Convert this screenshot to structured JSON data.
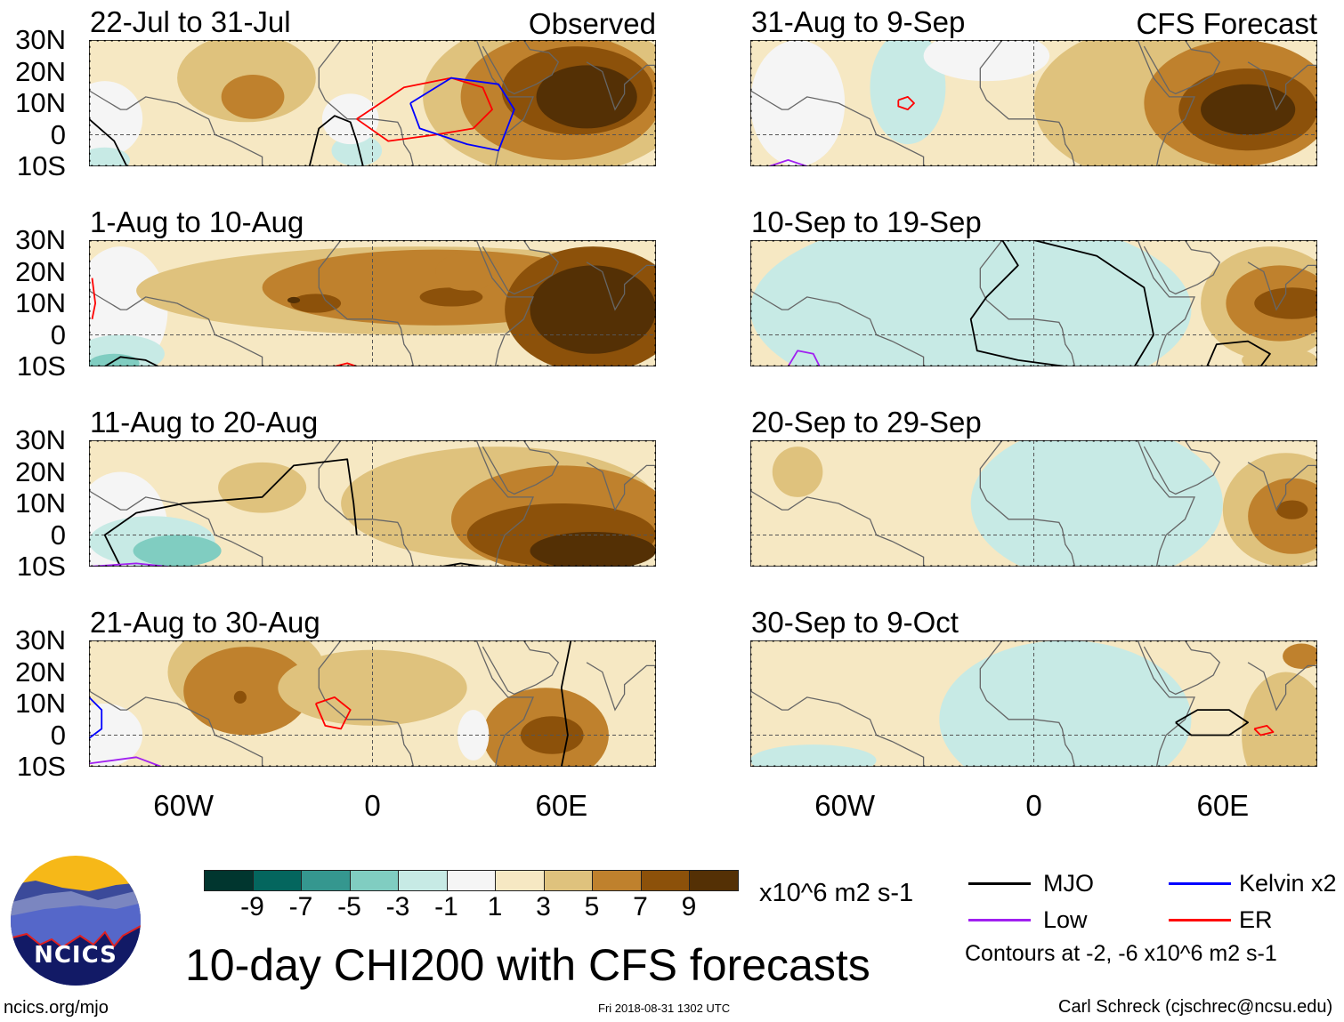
{
  "panels": [
    {
      "title": "22-Jul to 31-Jul",
      "tag": "Observed"
    },
    {
      "title": "1-Aug to 10-Aug"
    },
    {
      "title": "11-Aug to 20-Aug"
    },
    {
      "title": "21-Aug to 30-Aug"
    },
    {
      "title": "31-Aug to 9-Sep",
      "tag": "CFS Forecast"
    },
    {
      "title": "10-Sep to 19-Sep"
    },
    {
      "title": "20-Sep to 29-Sep"
    },
    {
      "title": "30-Sep to 9-Oct"
    }
  ],
  "lat_labels": [
    "30N",
    "20N",
    "10N",
    "0",
    "10S"
  ],
  "lon_labels": [
    "60W",
    "0",
    "60E"
  ],
  "colorbar": {
    "colors": [
      "#01362f",
      "#04665e",
      "#35978f",
      "#80cdc1",
      "#c7eae5",
      "#f5f5f5",
      "#f6e8c3",
      "#dfc27d",
      "#bf812d",
      "#8c510a",
      "#543005"
    ],
    "ticks": [
      "-9",
      "-7",
      "-5",
      "-3",
      "-1",
      "1",
      "3",
      "5",
      "7",
      "9"
    ],
    "units": "x10^6 m2 s-1"
  },
  "main_title": "10-day CHI200 with CFS forecasts",
  "legend": {
    "items": [
      {
        "label": "MJO",
        "color": "#000000"
      },
      {
        "label": "Kelvin x2",
        "color": "#0000ff"
      },
      {
        "label": "Low",
        "color": "#a020f0"
      },
      {
        "label": "ER",
        "color": "#ff0000"
      }
    ],
    "note": "Contours at -2, -6 x10^6 m2 s-1"
  },
  "logo_text": "NCICS",
  "footer": {
    "site": "ncics.org/mjo",
    "timestamp": "Fri 2018-08-31 1302 UTC",
    "credit": "Carl Schreck (cjschrec@ncsu.edu)"
  }
}
